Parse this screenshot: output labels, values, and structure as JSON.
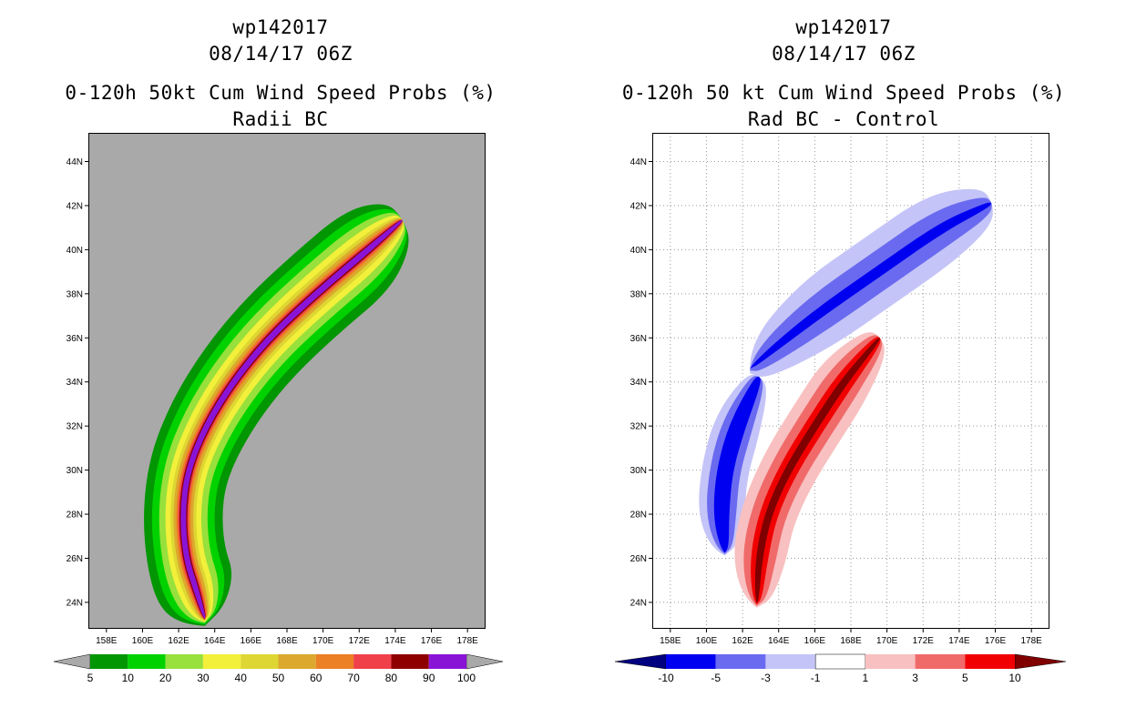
{
  "panels": [
    {
      "id": "left",
      "header": {
        "storm": "wp142017",
        "datetime": "08/14/17 06Z",
        "title": "0-120h 50kt Cum Wind Speed Probs (%)",
        "subtitle": "Radii BC"
      }
    },
    {
      "id": "right",
      "header": {
        "storm": "wp142017",
        "datetime": "08/14/17 06Z",
        "title": "0-120h 50 kt Cum Wind Speed Probs (%)",
        "subtitle": "Rad BC - Control"
      }
    }
  ],
  "chart_data": [
    {
      "type": "heatmap",
      "subtype": "filled-contour map",
      "title": "0-120h 50kt Cum Wind Speed Probs (%)",
      "subtitle": "Radii BC",
      "x_axis": {
        "label": "longitude",
        "range": [
          157,
          179
        ],
        "ticks": [
          "158E",
          "160E",
          "162E",
          "164E",
          "166E",
          "168E",
          "170E",
          "172E",
          "174E",
          "176E",
          "178E"
        ]
      },
      "y_axis": {
        "label": "latitude",
        "range": [
          22.8,
          45.3
        ],
        "ticks": [
          "24N",
          "26N",
          "28N",
          "30N",
          "32N",
          "34N",
          "36N",
          "38N",
          "40N",
          "42N",
          "44N"
        ]
      },
      "grid": false,
      "background_color": "#a9a9a9",
      "colorbar": {
        "labels": [
          "5",
          "10",
          "20",
          "30",
          "40",
          "50",
          "60",
          "70",
          "80",
          "90",
          "100"
        ],
        "colors": [
          "#029602",
          "#00d200",
          "#98e03c",
          "#f2f03a",
          "#ded632",
          "#dca82e",
          "#ec8024",
          "#f0414a",
          "#8e0000",
          "#8a14d6"
        ]
      },
      "track": [
        [
          163.4,
          23.4
        ],
        [
          163.0,
          24.5
        ],
        [
          162.4,
          26.0
        ],
        [
          162.2,
          28.0
        ],
        [
          162.5,
          30.0
        ],
        [
          163.5,
          32.0
        ],
        [
          165.0,
          34.0
        ],
        [
          167.0,
          36.0
        ],
        [
          169.6,
          38.0
        ],
        [
          172.5,
          40.0
        ],
        [
          174.2,
          41.2
        ]
      ],
      "levels": [
        {
          "min": 5,
          "half_width": 2.2
        },
        {
          "min": 10,
          "half_width": 1.75
        },
        {
          "min": 20,
          "half_width": 1.35
        },
        {
          "min": 30,
          "half_width": 1.0
        },
        {
          "min": 40,
          "half_width": 0.72
        },
        {
          "min": 50,
          "half_width": 0.55
        },
        {
          "min": 60,
          "half_width": 0.4
        },
        {
          "min": 70,
          "half_width": 0.3
        },
        {
          "min": 80,
          "half_width": 0.22
        },
        {
          "min": 90,
          "half_width": 0.15
        }
      ]
    },
    {
      "type": "heatmap",
      "subtype": "filled-contour difference map",
      "title": "0-120h 50 kt Cum Wind Speed Probs (%)",
      "subtitle": "Rad BC - Control",
      "x_axis": {
        "label": "longitude",
        "range": [
          157,
          179
        ],
        "ticks": [
          "158E",
          "160E",
          "162E",
          "164E",
          "166E",
          "168E",
          "170E",
          "172E",
          "174E",
          "176E",
          "178E"
        ]
      },
      "y_axis": {
        "label": "latitude",
        "range": [
          22.8,
          45.3
        ],
        "ticks": [
          "24N",
          "26N",
          "28N",
          "30N",
          "32N",
          "34N",
          "36N",
          "38N",
          "40N",
          "42N",
          "44N"
        ]
      },
      "grid": true,
      "background_color": "#ffffff",
      "colorbar": {
        "labels": [
          "-10",
          "-5",
          "-3",
          "-1",
          "1",
          "3",
          "5",
          "10"
        ],
        "colors": [
          "#000080",
          "#0000f0",
          "#6a6af0",
          "#c4c4f8",
          "#ffffff",
          "#f8c0c0",
          "#f06a6a",
          "#f00000",
          "#800000"
        ]
      },
      "regions": [
        {
          "name": "negative north",
          "sign": "negative",
          "track": [
            [
              162.8,
              34.9
            ],
            [
              166.0,
              37.0
            ],
            [
              169.5,
              39.0
            ],
            [
              173.0,
              41.0
            ],
            [
              175.5,
              42.0
            ]
          ],
          "levels": [
            {
              "max": -1,
              "half_width": 1.7
            },
            {
              "max": -3,
              "half_width": 0.9
            },
            {
              "max": -5,
              "half_width": 0.25
            }
          ]
        },
        {
          "name": "negative west",
          "sign": "negative",
          "track": [
            [
              161.0,
              26.5
            ],
            [
              160.8,
              28.0
            ],
            [
              161.0,
              30.0
            ],
            [
              161.7,
              32.0
            ],
            [
              162.8,
              34.0
            ]
          ],
          "levels": [
            {
              "max": -1,
              "half_width": 1.3
            },
            {
              "max": -3,
              "half_width": 0.85
            },
            {
              "max": -5,
              "half_width": 0.45
            }
          ]
        },
        {
          "name": "positive",
          "sign": "positive",
          "track": [
            [
              162.8,
              24.2
            ],
            [
              162.9,
              26.0
            ],
            [
              163.4,
              28.0
            ],
            [
              164.5,
              30.0
            ],
            [
              166.0,
              32.0
            ],
            [
              167.6,
              34.0
            ],
            [
              169.4,
              35.8
            ]
          ],
          "levels": [
            {
              "min": 1,
              "half_width": 1.5
            },
            {
              "min": 3,
              "half_width": 0.95
            },
            {
              "min": 5,
              "half_width": 0.5
            },
            {
              "min": 10,
              "half_width": 0.2
            }
          ]
        }
      ]
    }
  ]
}
